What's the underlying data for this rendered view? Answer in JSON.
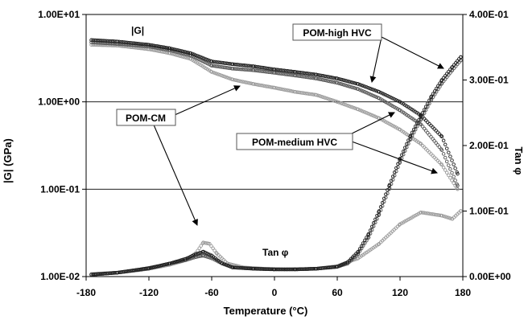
{
  "chart_data": {
    "type": "scatter",
    "xlabel": "Temperature (°C)",
    "ylabel_left": "|G| (GPa)",
    "ylabel_right": "Tan φ",
    "xlim": [
      -180,
      180
    ],
    "x_ticks": [
      "-180",
      "-120",
      "-60",
      "0",
      "60",
      "120",
      "180"
    ],
    "y_left_scale": "log",
    "y_left_lim": [
      0.01,
      10
    ],
    "y_left_ticks": [
      "1.00E+01",
      "1.00E+00",
      "1.00E-01",
      "1.00E-02"
    ],
    "y_right_lim": [
      0,
      0.4
    ],
    "y_right_ticks": [
      "4.00E-01",
      "3.00E-01",
      "2.00E-01",
      "1.00E-01",
      "0.00E+00"
    ],
    "grid": "horizontal",
    "annotations": {
      "g_label": "|G|",
      "tan_label": "Tan φ",
      "pom_cm": "POM-CM",
      "pom_high": "POM-high HVC",
      "pom_medium": "POM-medium HVC"
    },
    "series": [
      {
        "name": "POM-CM",
        "axis": "left",
        "color": "#9a9a9a",
        "x": [
          -175,
          -150,
          -120,
          -100,
          -80,
          -60,
          -40,
          -20,
          0,
          20,
          40,
          60,
          80,
          100,
          120,
          140,
          160,
          175
        ],
        "y": [
          4.5,
          4.4,
          4.0,
          3.6,
          3.1,
          2.2,
          1.8,
          1.6,
          1.45,
          1.3,
          1.2,
          1.0,
          0.82,
          0.65,
          0.48,
          0.33,
          0.19,
          0.1
        ]
      },
      {
        "name": "POM-medium HVC",
        "axis": "left",
        "color": "#555555",
        "x": [
          -175,
          -150,
          -120,
          -100,
          -80,
          -60,
          -40,
          -20,
          0,
          20,
          40,
          60,
          80,
          100,
          120,
          140,
          160,
          175
        ],
        "y": [
          4.8,
          4.6,
          4.3,
          3.9,
          3.4,
          2.6,
          2.4,
          2.3,
          2.15,
          2.0,
          1.85,
          1.65,
          1.4,
          1.1,
          0.8,
          0.55,
          0.28,
          0.11
        ]
      },
      {
        "name": "POM-high HVC",
        "axis": "left",
        "color": "#1e1e1e",
        "x": [
          -175,
          -150,
          -120,
          -100,
          -80,
          -60,
          -40,
          -20,
          0,
          20,
          40,
          60,
          80,
          100,
          120,
          140,
          160,
          175
        ],
        "y": [
          5.1,
          4.9,
          4.5,
          4.1,
          3.6,
          2.9,
          2.7,
          2.55,
          2.35,
          2.2,
          2.05,
          1.85,
          1.6,
          1.3,
          1.0,
          0.7,
          0.4,
          0.15
        ]
      },
      {
        "name": "POM-CM tan",
        "axis": "right",
        "color": "#9a9a9a",
        "x": [
          -175,
          -150,
          -120,
          -100,
          -85,
          -75,
          -68,
          -62,
          -55,
          -45,
          -30,
          -10,
          10,
          40,
          60,
          80,
          100,
          120,
          140,
          160,
          170,
          178
        ],
        "y": [
          0.004,
          0.006,
          0.012,
          0.018,
          0.025,
          0.036,
          0.052,
          0.05,
          0.035,
          0.02,
          0.014,
          0.012,
          0.011,
          0.012,
          0.016,
          0.028,
          0.05,
          0.08,
          0.098,
          0.093,
          0.088,
          0.1
        ]
      },
      {
        "name": "POM-medium HVC tan",
        "axis": "right",
        "color": "#555555",
        "x": [
          -175,
          -150,
          -120,
          -100,
          -85,
          -75,
          -68,
          -60,
          -50,
          -40,
          -20,
          0,
          20,
          40,
          60,
          70,
          80,
          90,
          100,
          110,
          120,
          130,
          140,
          150,
          160,
          170,
          178
        ],
        "y": [
          0.003,
          0.006,
          0.012,
          0.02,
          0.025,
          0.03,
          0.032,
          0.028,
          0.02,
          0.014,
          0.012,
          0.011,
          0.011,
          0.012,
          0.015,
          0.02,
          0.035,
          0.06,
          0.095,
          0.135,
          0.175,
          0.21,
          0.24,
          0.27,
          0.295,
          0.315,
          0.33
        ]
      },
      {
        "name": "POM-high HVC tan",
        "axis": "right",
        "color": "#1e1e1e",
        "x": [
          -175,
          -150,
          -120,
          -100,
          -85,
          -75,
          -68,
          -60,
          -50,
          -40,
          -20,
          0,
          20,
          40,
          60,
          70,
          80,
          90,
          100,
          110,
          120,
          130,
          140,
          150,
          160,
          170,
          178
        ],
        "y": [
          0.003,
          0.006,
          0.013,
          0.02,
          0.027,
          0.034,
          0.038,
          0.032,
          0.02,
          0.014,
          0.012,
          0.011,
          0.011,
          0.012,
          0.015,
          0.022,
          0.038,
          0.065,
          0.1,
          0.14,
          0.18,
          0.215,
          0.245,
          0.275,
          0.3,
          0.32,
          0.335
        ]
      }
    ]
  }
}
